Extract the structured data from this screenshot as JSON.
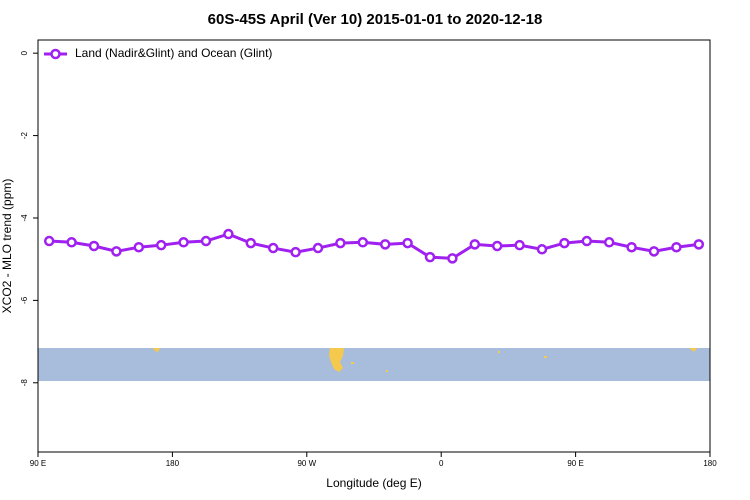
{
  "chart_data": {
    "type": "line",
    "title": "60S-45S April (Ver 10)   2015-01-01 to 2020-12-18",
    "x_label": "Longitude (deg E)",
    "y_label": "XCO2 - MLO trend (ppm)",
    "x": [
      97.5,
      112.5,
      127.5,
      142.5,
      157.5,
      172.5,
      187.5,
      202.5,
      217.5,
      232.5,
      247.5,
      262.5,
      277.5,
      292.5,
      307.5,
      322.5,
      337.5,
      352.5,
      367.5,
      382.5,
      397.5,
      412.5,
      427.5,
      442.5,
      457.5,
      472.5,
      487.5,
      502.5,
      517.5,
      532.5
    ],
    "series": [
      {
        "name": "Land (Nadir&Glint) and Ocean (Glint)",
        "color": "#a020f0",
        "values": [
          -4.56,
          -4.59,
          -4.68,
          -4.81,
          -4.71,
          -4.66,
          -4.59,
          -4.56,
          -4.39,
          -4.61,
          -4.73,
          -4.83,
          -4.73,
          -4.61,
          -4.59,
          -4.64,
          -4.61,
          -4.95,
          -4.98,
          -4.64,
          -4.68,
          -4.66,
          -4.76,
          -4.61,
          -4.56,
          -4.59,
          -4.71,
          -4.81,
          -4.71,
          -4.64
        ]
      }
    ],
    "xlim": [
      90,
      540
    ],
    "xticks": [
      {
        "value": 90,
        "label": "90 E"
      },
      {
        "value": 180,
        "label": "180"
      },
      {
        "value": 270,
        "label": "90 W"
      },
      {
        "value": 360,
        "label": "0"
      },
      {
        "value": 450,
        "label": "90 E"
      },
      {
        "value": 540,
        "label": "180"
      }
    ],
    "ylim": [
      -9.68,
      0.32
    ],
    "yticks": [
      0,
      -2,
      -4,
      -6,
      -8
    ],
    "legend": "top-left"
  }
}
